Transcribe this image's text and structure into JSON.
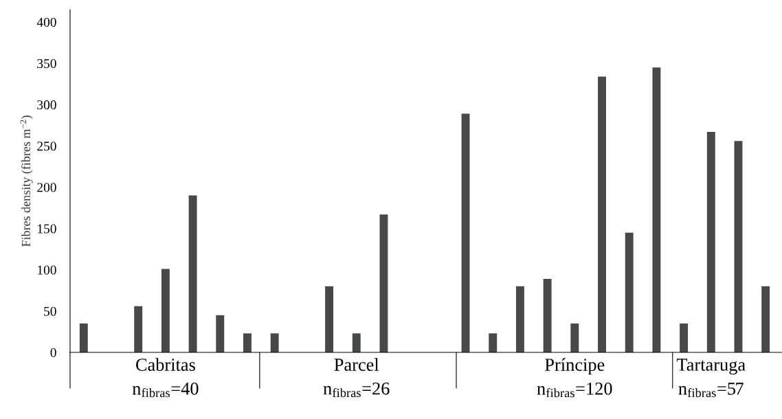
{
  "chart_data": {
    "type": "bar",
    "ylabel": "Fibres density (fibres m$^{−2}$)",
    "categories": [
      null,
      null,
      null,
      "Cabritas\nn$_{fibras}$=40",
      null,
      null,
      null,
      null,
      null,
      null,
      "Parcel\nn$_{fibras}$=26",
      null,
      null,
      null,
      null,
      null,
      null,
      null,
      "Príncipe\nn$_{fibras}$=120",
      null,
      null,
      null,
      null,
      "Tartaruga\nn$_{fibras}$=57",
      null,
      null
    ],
    "values": [
      35,
      0,
      56,
      101,
      190,
      45,
      23,
      23,
      0,
      80,
      23,
      167,
      0,
      0,
      289,
      23,
      80,
      89,
      35,
      334,
      145,
      345,
      35,
      267,
      256,
      80
    ],
    "color": "#474948",
    "ylim": [
      0,
      415
    ],
    "yticks": [
      0,
      50,
      100,
      150,
      200,
      250,
      300,
      350,
      400
    ],
    "grid": false
  }
}
